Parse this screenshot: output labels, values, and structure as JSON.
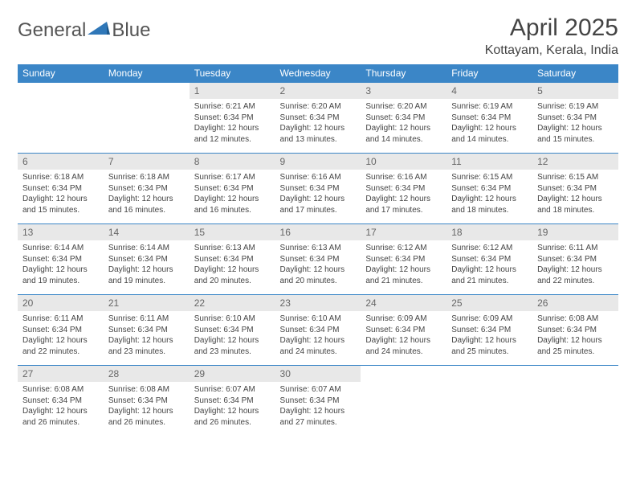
{
  "logo": {
    "text1": "General",
    "text2": "Blue",
    "brand_color": "#2f77b8"
  },
  "title": "April 2025",
  "location": "Kottayam, Kerala, India",
  "colors": {
    "header_bg": "#3b86c7",
    "header_text": "#ffffff",
    "daynum_bg": "#e8e8e8",
    "text": "#444444",
    "border": "#3b86c7"
  },
  "typography": {
    "title_fontsize": 30,
    "location_fontsize": 16,
    "weekday_fontsize": 12,
    "daynum_fontsize": 12,
    "body_fontsize": 10
  },
  "weekdays": [
    "Sunday",
    "Monday",
    "Tuesday",
    "Wednesday",
    "Thursday",
    "Friday",
    "Saturday"
  ],
  "weeks": [
    [
      {
        "n": "",
        "sr": "",
        "ss": "",
        "dl": ""
      },
      {
        "n": "",
        "sr": "",
        "ss": "",
        "dl": ""
      },
      {
        "n": "1",
        "sr": "Sunrise: 6:21 AM",
        "ss": "Sunset: 6:34 PM",
        "dl": "Daylight: 12 hours and 12 minutes."
      },
      {
        "n": "2",
        "sr": "Sunrise: 6:20 AM",
        "ss": "Sunset: 6:34 PM",
        "dl": "Daylight: 12 hours and 13 minutes."
      },
      {
        "n": "3",
        "sr": "Sunrise: 6:20 AM",
        "ss": "Sunset: 6:34 PM",
        "dl": "Daylight: 12 hours and 14 minutes."
      },
      {
        "n": "4",
        "sr": "Sunrise: 6:19 AM",
        "ss": "Sunset: 6:34 PM",
        "dl": "Daylight: 12 hours and 14 minutes."
      },
      {
        "n": "5",
        "sr": "Sunrise: 6:19 AM",
        "ss": "Sunset: 6:34 PM",
        "dl": "Daylight: 12 hours and 15 minutes."
      }
    ],
    [
      {
        "n": "6",
        "sr": "Sunrise: 6:18 AM",
        "ss": "Sunset: 6:34 PM",
        "dl": "Daylight: 12 hours and 15 minutes."
      },
      {
        "n": "7",
        "sr": "Sunrise: 6:18 AM",
        "ss": "Sunset: 6:34 PM",
        "dl": "Daylight: 12 hours and 16 minutes."
      },
      {
        "n": "8",
        "sr": "Sunrise: 6:17 AM",
        "ss": "Sunset: 6:34 PM",
        "dl": "Daylight: 12 hours and 16 minutes."
      },
      {
        "n": "9",
        "sr": "Sunrise: 6:16 AM",
        "ss": "Sunset: 6:34 PM",
        "dl": "Daylight: 12 hours and 17 minutes."
      },
      {
        "n": "10",
        "sr": "Sunrise: 6:16 AM",
        "ss": "Sunset: 6:34 PM",
        "dl": "Daylight: 12 hours and 17 minutes."
      },
      {
        "n": "11",
        "sr": "Sunrise: 6:15 AM",
        "ss": "Sunset: 6:34 PM",
        "dl": "Daylight: 12 hours and 18 minutes."
      },
      {
        "n": "12",
        "sr": "Sunrise: 6:15 AM",
        "ss": "Sunset: 6:34 PM",
        "dl": "Daylight: 12 hours and 18 minutes."
      }
    ],
    [
      {
        "n": "13",
        "sr": "Sunrise: 6:14 AM",
        "ss": "Sunset: 6:34 PM",
        "dl": "Daylight: 12 hours and 19 minutes."
      },
      {
        "n": "14",
        "sr": "Sunrise: 6:14 AM",
        "ss": "Sunset: 6:34 PM",
        "dl": "Daylight: 12 hours and 19 minutes."
      },
      {
        "n": "15",
        "sr": "Sunrise: 6:13 AM",
        "ss": "Sunset: 6:34 PM",
        "dl": "Daylight: 12 hours and 20 minutes."
      },
      {
        "n": "16",
        "sr": "Sunrise: 6:13 AM",
        "ss": "Sunset: 6:34 PM",
        "dl": "Daylight: 12 hours and 20 minutes."
      },
      {
        "n": "17",
        "sr": "Sunrise: 6:12 AM",
        "ss": "Sunset: 6:34 PM",
        "dl": "Daylight: 12 hours and 21 minutes."
      },
      {
        "n": "18",
        "sr": "Sunrise: 6:12 AM",
        "ss": "Sunset: 6:34 PM",
        "dl": "Daylight: 12 hours and 21 minutes."
      },
      {
        "n": "19",
        "sr": "Sunrise: 6:11 AM",
        "ss": "Sunset: 6:34 PM",
        "dl": "Daylight: 12 hours and 22 minutes."
      }
    ],
    [
      {
        "n": "20",
        "sr": "Sunrise: 6:11 AM",
        "ss": "Sunset: 6:34 PM",
        "dl": "Daylight: 12 hours and 22 minutes."
      },
      {
        "n": "21",
        "sr": "Sunrise: 6:11 AM",
        "ss": "Sunset: 6:34 PM",
        "dl": "Daylight: 12 hours and 23 minutes."
      },
      {
        "n": "22",
        "sr": "Sunrise: 6:10 AM",
        "ss": "Sunset: 6:34 PM",
        "dl": "Daylight: 12 hours and 23 minutes."
      },
      {
        "n": "23",
        "sr": "Sunrise: 6:10 AM",
        "ss": "Sunset: 6:34 PM",
        "dl": "Daylight: 12 hours and 24 minutes."
      },
      {
        "n": "24",
        "sr": "Sunrise: 6:09 AM",
        "ss": "Sunset: 6:34 PM",
        "dl": "Daylight: 12 hours and 24 minutes."
      },
      {
        "n": "25",
        "sr": "Sunrise: 6:09 AM",
        "ss": "Sunset: 6:34 PM",
        "dl": "Daylight: 12 hours and 25 minutes."
      },
      {
        "n": "26",
        "sr": "Sunrise: 6:08 AM",
        "ss": "Sunset: 6:34 PM",
        "dl": "Daylight: 12 hours and 25 minutes."
      }
    ],
    [
      {
        "n": "27",
        "sr": "Sunrise: 6:08 AM",
        "ss": "Sunset: 6:34 PM",
        "dl": "Daylight: 12 hours and 26 minutes."
      },
      {
        "n": "28",
        "sr": "Sunrise: 6:08 AM",
        "ss": "Sunset: 6:34 PM",
        "dl": "Daylight: 12 hours and 26 minutes."
      },
      {
        "n": "29",
        "sr": "Sunrise: 6:07 AM",
        "ss": "Sunset: 6:34 PM",
        "dl": "Daylight: 12 hours and 26 minutes."
      },
      {
        "n": "30",
        "sr": "Sunrise: 6:07 AM",
        "ss": "Sunset: 6:34 PM",
        "dl": "Daylight: 12 hours and 27 minutes."
      },
      {
        "n": "",
        "sr": "",
        "ss": "",
        "dl": ""
      },
      {
        "n": "",
        "sr": "",
        "ss": "",
        "dl": ""
      },
      {
        "n": "",
        "sr": "",
        "ss": "",
        "dl": ""
      }
    ]
  ]
}
